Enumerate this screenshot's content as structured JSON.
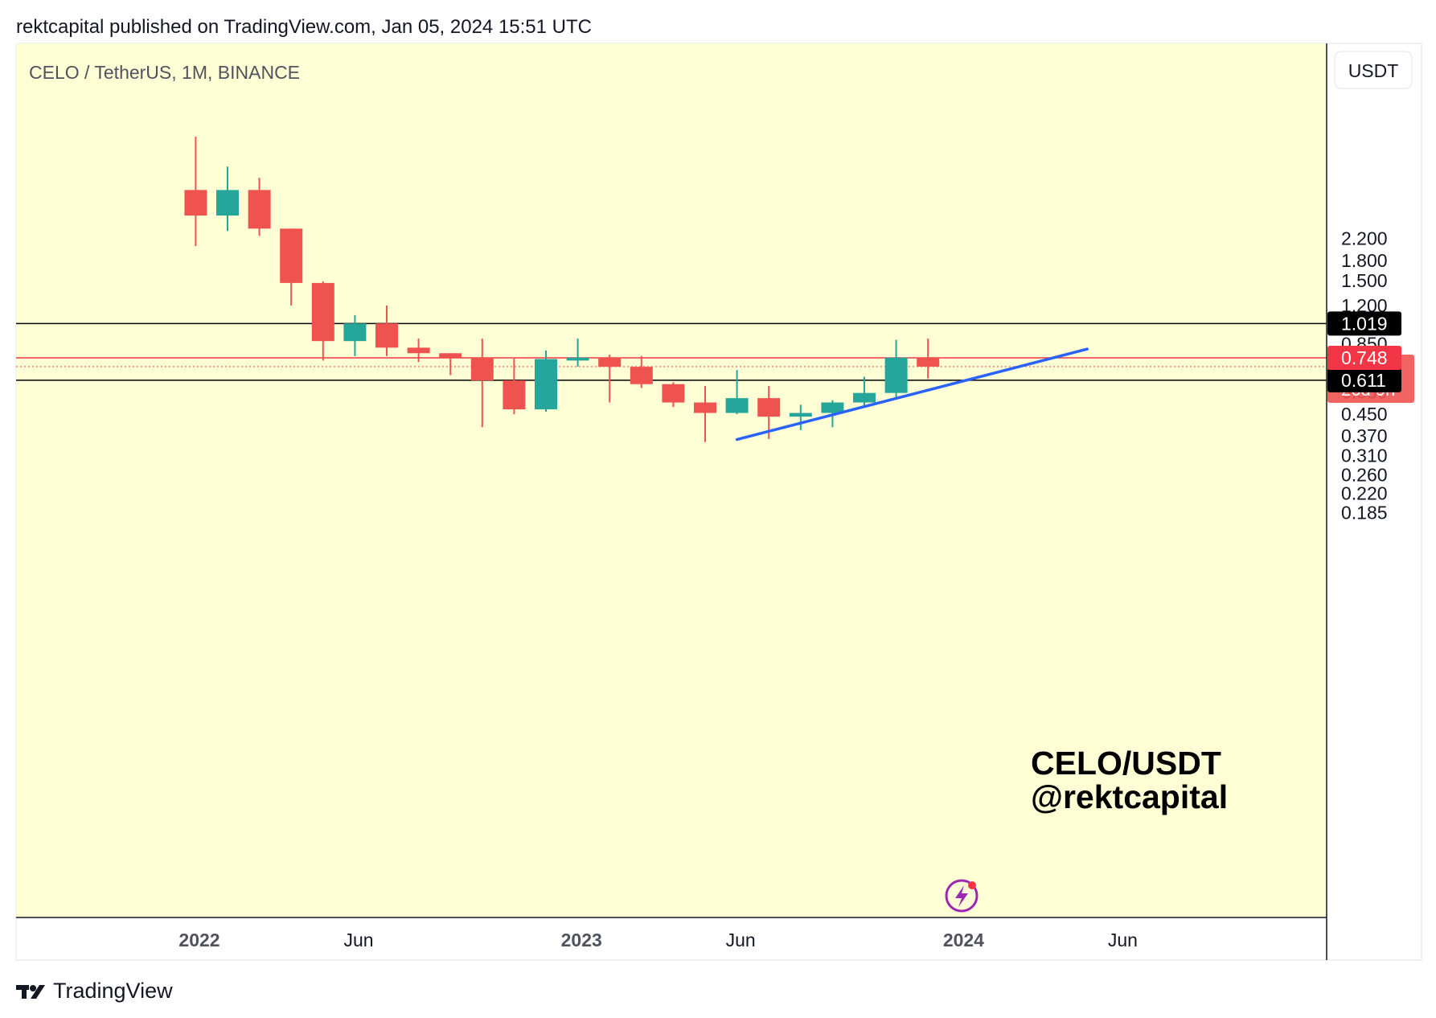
{
  "header": {
    "published_line": "rektcapital published on TradingView.com, Jan 05, 2024 15:51 UTC"
  },
  "symbol_line": "CELO / TetherUS, 1M, BINANCE",
  "currency_button": "USDT",
  "watermark": {
    "line1": "CELO/USDT",
    "line2": "@rektcapital"
  },
  "footer": {
    "brand": "TradingView",
    "logo_icon": "tradingview-logo-icon"
  },
  "colors": {
    "background": "#ffffd6",
    "up": "#26a69a",
    "down": "#ef5350",
    "trendline": "#2962ff",
    "level_line": "#000000",
    "last_price_line": "#f23645"
  },
  "chart_data": {
    "type": "candlestick",
    "interval": "1M",
    "y_scale": "log",
    "y_ticks": [
      "2.200",
      "1.800",
      "1.500",
      "1.200",
      "0.850",
      "0.550",
      "0.450",
      "0.370",
      "0.310",
      "0.260",
      "0.220",
      "0.185"
    ],
    "x_ticks": [
      "2022",
      "Jun",
      "2023",
      "Jun",
      "2024",
      "Jun"
    ],
    "candles": [
      {
        "date": "2021-12",
        "open": 3.4,
        "high": 5.5,
        "low": 2.05,
        "close": 2.7
      },
      {
        "date": "2022-01",
        "open": 2.7,
        "high": 4.2,
        "low": 2.35,
        "close": 3.4
      },
      {
        "date": "2022-02",
        "open": 3.4,
        "high": 3.8,
        "low": 2.25,
        "close": 2.4
      },
      {
        "date": "2022-03",
        "open": 2.4,
        "high": 2.4,
        "low": 1.2,
        "close": 1.47
      },
      {
        "date": "2022-04",
        "open": 1.47,
        "high": 1.49,
        "low": 0.73,
        "close": 0.87
      },
      {
        "date": "2022-05",
        "open": 0.87,
        "high": 1.1,
        "low": 0.76,
        "close": 1.02
      },
      {
        "date": "2022-06",
        "open": 1.02,
        "high": 1.2,
        "low": 0.76,
        "close": 0.82
      },
      {
        "date": "2022-07",
        "open": 0.82,
        "high": 0.89,
        "low": 0.72,
        "close": 0.78
      },
      {
        "date": "2022-08",
        "open": 0.78,
        "high": 0.78,
        "low": 0.64,
        "close": 0.75
      },
      {
        "date": "2022-09",
        "open": 0.75,
        "high": 0.89,
        "low": 0.4,
        "close": 0.61
      },
      {
        "date": "2022-10",
        "open": 0.61,
        "high": 0.75,
        "low": 0.45,
        "close": 0.47
      },
      {
        "date": "2022-11",
        "open": 0.47,
        "high": 0.8,
        "low": 0.46,
        "close": 0.74
      },
      {
        "date": "2022-12",
        "open": 0.73,
        "high": 0.89,
        "low": 0.69,
        "close": 0.75
      },
      {
        "date": "2023-01",
        "open": 0.75,
        "high": 0.77,
        "low": 0.5,
        "close": 0.69
      },
      {
        "date": "2023-02",
        "open": 0.69,
        "high": 0.76,
        "low": 0.57,
        "close": 0.59
      },
      {
        "date": "2023-03",
        "open": 0.59,
        "high": 0.6,
        "low": 0.48,
        "close": 0.5
      },
      {
        "date": "2023-04",
        "open": 0.5,
        "high": 0.58,
        "low": 0.35,
        "close": 0.455
      },
      {
        "date": "2023-05",
        "open": 0.455,
        "high": 0.67,
        "low": 0.45,
        "close": 0.52
      },
      {
        "date": "2023-06",
        "open": 0.52,
        "high": 0.58,
        "low": 0.36,
        "close": 0.44
      },
      {
        "date": "2023-07",
        "open": 0.44,
        "high": 0.49,
        "low": 0.39,
        "close": 0.455
      },
      {
        "date": "2023-08",
        "open": 0.455,
        "high": 0.51,
        "low": 0.4,
        "close": 0.5
      },
      {
        "date": "2023-09",
        "open": 0.5,
        "high": 0.63,
        "low": 0.48,
        "close": 0.545
      },
      {
        "date": "2023-10",
        "open": 0.545,
        "high": 0.88,
        "low": 0.52,
        "close": 0.75
      },
      {
        "date": "2023-11",
        "open": 0.75,
        "high": 0.89,
        "low": 0.62,
        "close": 0.691
      }
    ],
    "horizontal_levels": [
      {
        "price": 1.019,
        "label": "1.019",
        "color": "#000000"
      },
      {
        "price": 0.611,
        "label": "0.611",
        "color": "#000000"
      },
      {
        "price": 0.748,
        "label": "0.748",
        "color": "#f23645"
      }
    ],
    "last_price": {
      "price": 0.691,
      "label": "0.691",
      "countdown": "26d 9h"
    },
    "trendline": {
      "start": {
        "date": "2023-05",
        "price": 0.358
      },
      "end": {
        "date": "2024-04",
        "price": 0.81
      }
    }
  }
}
